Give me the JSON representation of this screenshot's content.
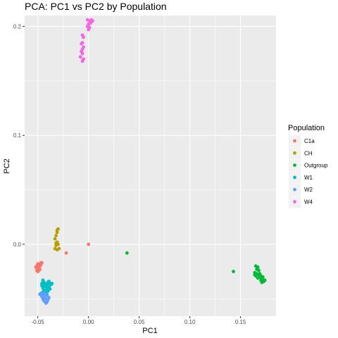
{
  "chart_data": {
    "type": "scatter",
    "title": "PCA: PC1 vs PC2 by Population",
    "xlabel": "PC1",
    "ylabel": "PC2",
    "xlim": [
      -0.063,
      0.185
    ],
    "ylim": [
      -0.066,
      0.21
    ],
    "x_ticks": [
      -0.05,
      0.0,
      0.05,
      0.1,
      0.15
    ],
    "x_tick_labels": [
      "-0.05",
      "0.00",
      "0.05",
      "0.10",
      "0.15"
    ],
    "y_ticks": [
      0.0,
      0.1,
      0.2
    ],
    "y_tick_labels": [
      "0.0",
      "0.1",
      "0.2"
    ],
    "grid": true,
    "legend": {
      "title": "Population",
      "placement": "right"
    },
    "series": [
      {
        "name": "C1a",
        "color": "#F8766D",
        "points": [
          [
            -0.05,
            -0.019
          ],
          [
            -0.049,
            -0.021
          ],
          [
            -0.051,
            -0.02
          ],
          [
            -0.048,
            -0.018
          ],
          [
            -0.047,
            -0.017
          ],
          [
            -0.05,
            -0.023
          ],
          [
            -0.049,
            -0.022
          ],
          [
            -0.051,
            -0.024
          ],
          [
            -0.048,
            -0.02
          ],
          [
            -0.047,
            -0.019
          ],
          [
            -0.046,
            -0.017
          ],
          [
            -0.05,
            -0.018
          ],
          [
            -0.049,
            -0.024
          ],
          [
            -0.05,
            -0.025
          ],
          [
            -0.052,
            -0.021
          ],
          [
            -0.048,
            -0.023
          ],
          [
            -0.022,
            -0.008
          ],
          [
            0.0,
            0.0
          ]
        ]
      },
      {
        "name": "CH",
        "color": "#B79F00",
        "points": [
          [
            -0.031,
            0.013
          ],
          [
            -0.03,
            0.014
          ],
          [
            -0.031,
            0.011
          ],
          [
            -0.032,
            0.008
          ],
          [
            -0.033,
            0.005
          ],
          [
            -0.031,
            0.002
          ],
          [
            -0.032,
            0.001
          ],
          [
            -0.03,
            0.0
          ],
          [
            -0.033,
            -0.004
          ],
          [
            -0.031,
            -0.005
          ],
          [
            -0.029,
            -0.004
          ],
          [
            -0.032,
            -0.001
          ]
        ]
      },
      {
        "name": "Outgroup",
        "color": "#00BA38",
        "points": [
          [
            0.038,
            -0.008
          ],
          [
            0.143,
            -0.025
          ],
          [
            0.165,
            -0.02
          ],
          [
            0.167,
            -0.021
          ],
          [
            0.164,
            -0.026
          ],
          [
            0.166,
            -0.027
          ],
          [
            0.168,
            -0.028
          ],
          [
            0.169,
            -0.03
          ],
          [
            0.17,
            -0.029
          ],
          [
            0.171,
            -0.031
          ],
          [
            0.172,
            -0.032
          ],
          [
            0.173,
            -0.034
          ],
          [
            0.171,
            -0.035
          ],
          [
            0.174,
            -0.033
          ],
          [
            0.167,
            -0.031
          ],
          [
            0.165,
            -0.029
          ],
          [
            0.17,
            -0.033
          ],
          [
            0.168,
            -0.024
          ],
          [
            0.166,
            -0.023
          ],
          [
            0.172,
            -0.03
          ],
          [
            0.164,
            -0.028
          ],
          [
            0.169,
            -0.027
          ]
        ]
      },
      {
        "name": "W1",
        "color": "#00BFC4",
        "points": [
          [
            -0.045,
            -0.033
          ],
          [
            -0.044,
            -0.035
          ],
          [
            -0.046,
            -0.036
          ],
          [
            -0.042,
            -0.037
          ],
          [
            -0.04,
            -0.035
          ],
          [
            -0.038,
            -0.036
          ],
          [
            -0.043,
            -0.038
          ],
          [
            -0.045,
            -0.04
          ],
          [
            -0.041,
            -0.041
          ],
          [
            -0.039,
            -0.039
          ],
          [
            -0.044,
            -0.042
          ],
          [
            -0.042,
            -0.044
          ],
          [
            -0.037,
            -0.037
          ],
          [
            -0.046,
            -0.038
          ],
          [
            -0.04,
            -0.043
          ],
          [
            -0.043,
            -0.036
          ],
          [
            -0.039,
            -0.034
          ],
          [
            -0.036,
            -0.036
          ],
          [
            -0.045,
            -0.044
          ],
          [
            -0.041,
            -0.046
          ],
          [
            -0.044,
            -0.037
          ],
          [
            -0.038,
            -0.041
          ],
          [
            -0.042,
            -0.039
          ],
          [
            -0.04,
            -0.038
          ]
        ]
      },
      {
        "name": "W2",
        "color": "#619CFF",
        "points": [
          [
            -0.047,
            -0.045
          ],
          [
            -0.045,
            -0.046
          ],
          [
            -0.046,
            -0.048
          ],
          [
            -0.044,
            -0.049
          ],
          [
            -0.043,
            -0.047
          ],
          [
            -0.042,
            -0.05
          ],
          [
            -0.04,
            -0.051
          ],
          [
            -0.044,
            -0.052
          ],
          [
            -0.041,
            -0.053
          ],
          [
            -0.039,
            -0.049
          ],
          [
            -0.048,
            -0.046
          ],
          [
            -0.045,
            -0.05
          ],
          [
            -0.043,
            -0.045
          ],
          [
            -0.041,
            -0.047
          ],
          [
            -0.042,
            -0.054
          ],
          [
            -0.046,
            -0.047
          ]
        ]
      },
      {
        "name": "W4",
        "color": "#F564E3",
        "points": [
          [
            -0.001,
            0.206
          ],
          [
            0.001,
            0.205
          ],
          [
            0.003,
            0.206
          ],
          [
            0.004,
            0.205
          ],
          [
            0.002,
            0.203
          ],
          [
            0.0,
            0.202
          ],
          [
            -0.001,
            0.2
          ],
          [
            0.001,
            0.199
          ],
          [
            0.0,
            0.197
          ],
          [
            -0.006,
            0.192
          ],
          [
            -0.005,
            0.19
          ],
          [
            -0.006,
            0.185
          ],
          [
            -0.007,
            0.184
          ],
          [
            -0.005,
            0.181
          ],
          [
            -0.006,
            0.179
          ],
          [
            -0.007,
            0.177
          ],
          [
            -0.006,
            0.175
          ],
          [
            -0.008,
            0.172
          ],
          [
            -0.005,
            0.17
          ],
          [
            -0.006,
            0.168
          ]
        ]
      }
    ]
  }
}
